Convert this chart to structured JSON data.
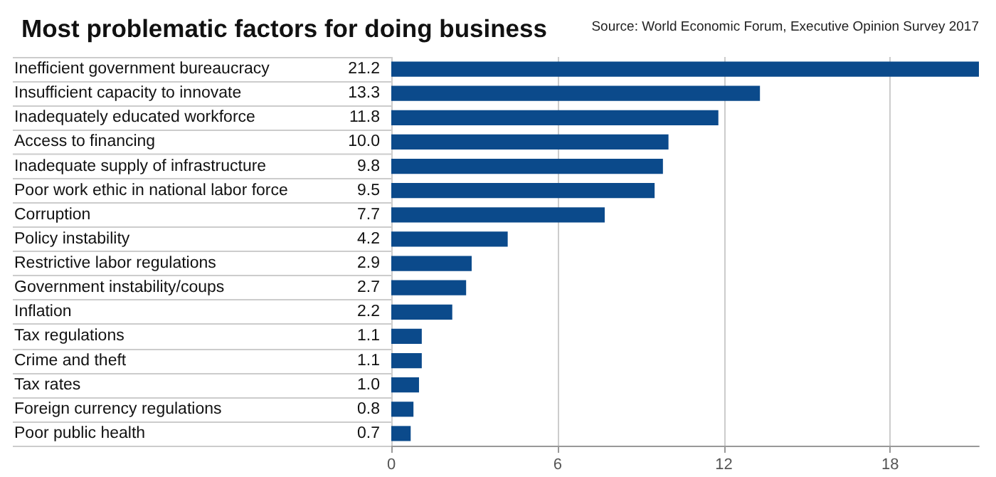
{
  "chart_data": {
    "type": "bar",
    "orientation": "horizontal",
    "title": "Most problematic factors for doing business",
    "annotations": [
      "Source: World Economic Forum, Executive Opinion Survey 2017"
    ],
    "categories": [
      "Inefficient government bureaucracy",
      "Insufficient capacity to innovate",
      "Inadequately educated workforce",
      "Access to financing",
      "Inadequate supply of infrastructure",
      "Poor work ethic in national labor force",
      "Corruption",
      "Policy instability",
      "Restrictive labor regulations",
      "Government instability/coups",
      "Inflation",
      "Tax regulations",
      "Crime and theft",
      "Tax rates",
      "Foreign currency regulations",
      "Poor public health"
    ],
    "values": [
      21.2,
      13.3,
      11.8,
      10.0,
      9.8,
      9.5,
      7.7,
      4.2,
      2.9,
      2.7,
      2.2,
      1.1,
      1.1,
      1.0,
      0.8,
      0.7
    ],
    "value_labels": [
      "21.2",
      "13.3",
      "11.8",
      "10.0",
      "9.8",
      "9.5",
      "7.7",
      "4.2",
      "2.9",
      "2.7",
      "2.2",
      "1.1",
      "1.1",
      "1.0",
      "0.8",
      "0.7"
    ],
    "color": "#0b4a8b",
    "xlim": [
      0,
      21.2
    ],
    "xticks": [
      0,
      6,
      12,
      18
    ],
    "grid": "x"
  }
}
